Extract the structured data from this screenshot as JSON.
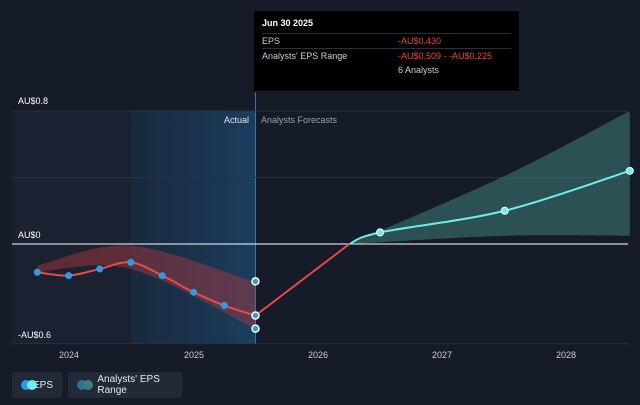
{
  "chart_data": {
    "type": "line",
    "y_axis_labels": [
      "AU$0.8",
      "AU$0",
      "-AU$0.6"
    ],
    "ylim": [
      -0.6,
      0.8
    ],
    "x_tick_labels": [
      "2024",
      "2025",
      "2026",
      "2027",
      "2028"
    ],
    "section_labels": {
      "actual": "Actual",
      "forecast": "Analysts Forecasts"
    },
    "series": [
      {
        "name": "EPS",
        "color": "#e64a4a",
        "x": [
          "2023-09-30",
          "2023-12-31",
          "2024-03-31",
          "2024-06-30",
          "2024-09-30",
          "2024-12-31",
          "2025-03-31",
          "2025-06-30"
        ],
        "values": [
          -0.17,
          -0.19,
          -0.15,
          -0.11,
          -0.19,
          -0.29,
          -0.37,
          -0.43
        ]
      },
      {
        "name": "EPS",
        "color": "#6eeee8",
        "x": [
          "2025-06-30",
          "2026-04-01",
          "2026-06-30",
          "2027-06-30",
          "2028-06-30"
        ],
        "values": [
          -0.43,
          0.0,
          0.07,
          0.2,
          0.44
        ]
      },
      {
        "name": "Analysts' EPS Range",
        "past_range": {
          "x": [
            "2023-09-30",
            "2024-06-30",
            "2025-06-30"
          ],
          "high": [
            -0.13,
            -0.01,
            -0.23
          ],
          "low": [
            -0.17,
            -0.15,
            -0.51
          ]
        },
        "forecast_range": {
          "x": [
            "2026-04-01",
            "2027-06-30",
            "2028-06-30"
          ],
          "high": [
            0.0,
            0.41,
            0.8
          ],
          "low": [
            0.0,
            0.05,
            0.05
          ]
        }
      }
    ],
    "highlighted_point": {
      "x": "2025-06-30",
      "eps": -0.43,
      "range_low": -0.509,
      "range_high": -0.225
    }
  },
  "tooltip": {
    "title": "Jun 30 2025",
    "eps_label": "EPS",
    "eps_value": "-AU$0.430",
    "range_label": "Analysts' EPS Range",
    "range_value": "-AU$0.509 - -AU$0.225",
    "analysts": "6 Analysts"
  },
  "legend": {
    "eps_label": "EPS",
    "range_label": "Analysts' EPS Range",
    "eps_color_a": "#2e9bea",
    "eps_color_b": "#6eeee8",
    "range_color_a": "#2e6fa0",
    "range_color_b": "#3f7d78"
  },
  "colors": {
    "background": "#151b28",
    "past_eps": "#e64a4a",
    "forecast_eps": "#6eeee8",
    "past_point": "#2e9bea",
    "zero_line": "#ffffff"
  }
}
